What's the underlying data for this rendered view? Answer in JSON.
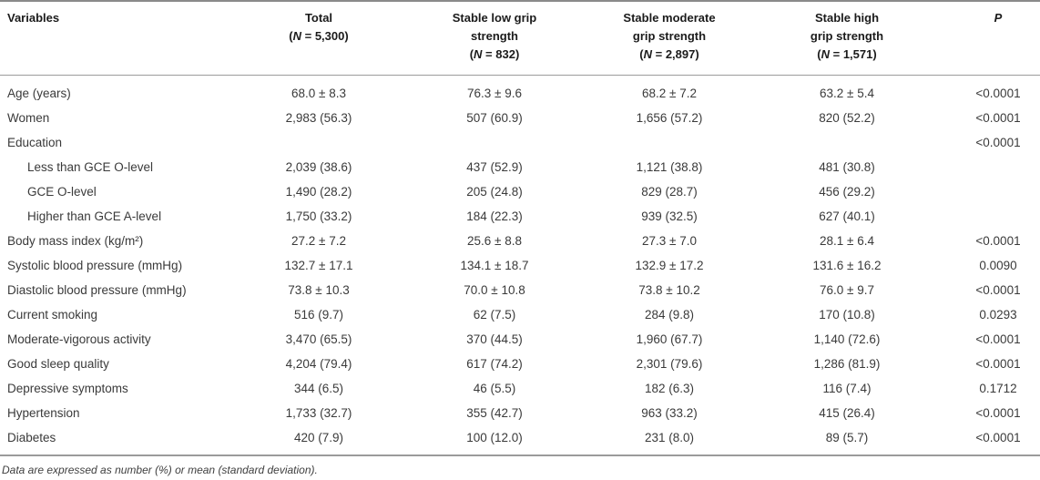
{
  "table": {
    "variables_header": "Variables",
    "p_header": "P",
    "n_symbol": "N",
    "columns": [
      {
        "id": "total",
        "lines": [
          "Total"
        ],
        "n": "5,300"
      },
      {
        "id": "low",
        "lines": [
          "Stable low grip",
          "strength"
        ],
        "n": "832"
      },
      {
        "id": "moderate",
        "lines": [
          "Stable moderate",
          "grip strength"
        ],
        "n": "2,897"
      },
      {
        "id": "high",
        "lines": [
          "Stable high",
          "grip strength"
        ],
        "n": "1,571"
      }
    ],
    "rows": [
      {
        "label": "Age (years)",
        "indent": false,
        "cells": [
          "68.0 ± 8.3",
          "76.3 ± 9.6",
          "68.2 ± 7.2",
          "63.2 ± 5.4"
        ],
        "p": "<0.0001"
      },
      {
        "label": "Women",
        "indent": false,
        "cells": [
          "2,983 (56.3)",
          "507 (60.9)",
          "1,656 (57.2)",
          "820 (52.2)"
        ],
        "p": "<0.0001"
      },
      {
        "label": "Education",
        "indent": false,
        "cells": [
          "",
          "",
          "",
          ""
        ],
        "p": "<0.0001"
      },
      {
        "label": "Less than GCE O-level",
        "indent": true,
        "cells": [
          "2,039 (38.6)",
          "437 (52.9)",
          "1,121 (38.8)",
          "481 (30.8)"
        ],
        "p": ""
      },
      {
        "label": "GCE O-level",
        "indent": true,
        "cells": [
          "1,490 (28.2)",
          "205 (24.8)",
          "829 (28.7)",
          "456 (29.2)"
        ],
        "p": ""
      },
      {
        "label": "Higher than GCE A-level",
        "indent": true,
        "cells": [
          "1,750 (33.2)",
          "184 (22.3)",
          "939 (32.5)",
          "627 (40.1)"
        ],
        "p": ""
      },
      {
        "label": "Body mass index (kg/m²)",
        "indent": false,
        "cells": [
          "27.2 ± 7.2",
          "25.6 ± 8.8",
          "27.3 ± 7.0",
          "28.1 ± 6.4"
        ],
        "p": "<0.0001"
      },
      {
        "label": "Systolic blood pressure (mmHg)",
        "indent": false,
        "cells": [
          "132.7 ± 17.1",
          "134.1 ± 18.7",
          "132.9 ± 17.2",
          "131.6 ± 16.2"
        ],
        "p": "0.0090"
      },
      {
        "label": "Diastolic blood pressure (mmHg)",
        "indent": false,
        "cells": [
          "73.8 ± 10.3",
          "70.0 ± 10.8",
          "73.8 ± 10.2",
          "76.0 ± 9.7"
        ],
        "p": "<0.0001"
      },
      {
        "label": "Current smoking",
        "indent": false,
        "cells": [
          "516 (9.7)",
          "62 (7.5)",
          "284 (9.8)",
          "170 (10.8)"
        ],
        "p": "0.0293"
      },
      {
        "label": "Moderate-vigorous activity",
        "indent": false,
        "cells": [
          "3,470 (65.5)",
          "370 (44.5)",
          "1,960 (67.7)",
          "1,140 (72.6)"
        ],
        "p": "<0.0001"
      },
      {
        "label": "Good sleep quality",
        "indent": false,
        "cells": [
          "4,204 (79.4)",
          "617 (74.2)",
          "2,301 (79.6)",
          "1,286 (81.9)"
        ],
        "p": "<0.0001"
      },
      {
        "label": "Depressive symptoms",
        "indent": false,
        "cells": [
          "344 (6.5)",
          "46 (5.5)",
          "182 (6.3)",
          "116 (7.4)"
        ],
        "p": "0.1712"
      },
      {
        "label": "Hypertension",
        "indent": false,
        "cells": [
          "1,733 (32.7)",
          "355 (42.7)",
          "963 (33.2)",
          "415 (26.4)"
        ],
        "p": "<0.0001"
      },
      {
        "label": "Diabetes",
        "indent": false,
        "cells": [
          "420 (7.9)",
          "100 (12.0)",
          "231 (8.0)",
          "89 (5.7)"
        ],
        "p": "<0.0001"
      }
    ]
  },
  "footnote": "Data are expressed as number (%) or mean (standard deviation).",
  "colors": {
    "rule_top": "#8a8a8a",
    "rule_inner": "#9b9b9b",
    "header_text": "#1b1b1b",
    "body_text": "#3a3a3a",
    "background": "#ffffff"
  }
}
